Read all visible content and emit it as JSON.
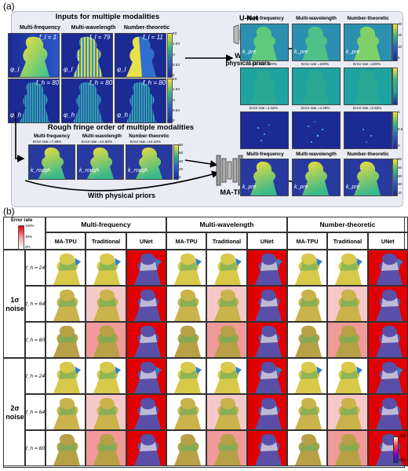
{
  "panel_a_label": "(a)",
  "panel_b_label": "(b)",
  "top": {
    "inputs_title": "Inputs for multiple modalities",
    "rough_title": "Rough fringe order of multiple modalities",
    "modalities": [
      "Multi-frequency",
      "Multi-wavelength",
      "Number-theoretic"
    ],
    "row1_tags": [
      "f_l = 1",
      "f_l = 79",
      "f_l = 11"
    ],
    "row2_tags": [
      "f_h = 80",
      "f_h = 80",
      "f_h = 80"
    ],
    "phi_l": "φ_l",
    "phi_h": "φ_h",
    "rough_errors": [
      "Error rate =7.28%",
      "Error rate =14.50%",
      "Error rate =10.10%"
    ],
    "k_rough": "k_rough",
    "k_pre": "k_pre",
    "unet_label": "U-Net",
    "without_label_1": "Without",
    "without_label_2": "physical priors",
    "with_label": "With physical priors",
    "matpu_label": "MA-TPU",
    "unet_errors": [
      "Error rate =100%",
      "Error rate =100%",
      "Error rate =100%"
    ],
    "matpu_errors": [
      "Error rate =1.52%",
      "Error rate =3.26%",
      "Error rate =2.62%"
    ],
    "phase_ticks": [
      "2π",
      "1.5π",
      "π",
      "0.5π",
      "0"
    ],
    "k_ticks": [
      "80",
      "60",
      "40",
      "20",
      "0"
    ],
    "pred_ticks": [
      "20",
      "15",
      "10",
      "5"
    ],
    "err_ticks": [
      "1",
      "0.5",
      "0"
    ],
    "final_ticks": [
      "50",
      "40",
      "30",
      "20",
      "10"
    ]
  },
  "bottom": {
    "legend_title": "Error rate",
    "legend_ticks": [
      "100%",
      "30%",
      "0%"
    ],
    "groups": [
      "Multi-frequency",
      "Multi-wavelength",
      "Number-theoretic"
    ],
    "methods": [
      "MA-TPU",
      "Traditional",
      "UNet"
    ],
    "noise_blocks": [
      {
        "label_1": "1σ",
        "label_2": "noise",
        "rows": [
          "f_h = 24",
          "f_h = 64",
          "f_h = 80"
        ]
      },
      {
        "label_1": "2σ",
        "label_2": "noise",
        "rows": [
          "f_h = 24",
          "f_h = 64",
          "f_h = 80"
        ]
      }
    ],
    "depth_ticks": [
      "-300",
      "-600"
    ],
    "colors": {
      "error_high": "#e10000",
      "error_low": "#ffffff"
    }
  }
}
